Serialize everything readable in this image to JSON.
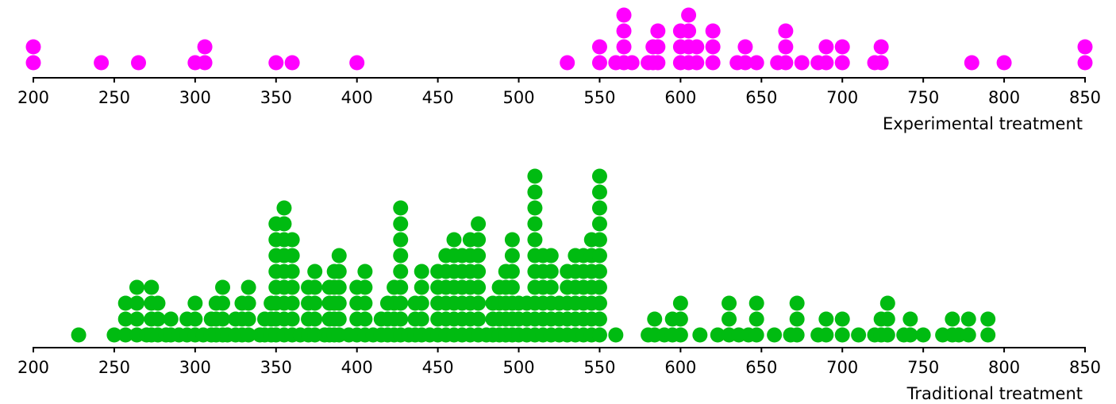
{
  "chart_data": [
    {
      "type": "dotplot",
      "title": "",
      "xlabel": "Experimental treatment",
      "xlim": [
        200,
        850
      ],
      "xticks": [
        200,
        250,
        300,
        350,
        400,
        450,
        500,
        550,
        600,
        650,
        700,
        750,
        800,
        850
      ],
      "color": "#ff00ff",
      "dots": [
        [
          200,
          2
        ],
        [
          242,
          1
        ],
        [
          265,
          1
        ],
        [
          300,
          1
        ],
        [
          306,
          2
        ],
        [
          350,
          1
        ],
        [
          360,
          1
        ],
        [
          400,
          1
        ],
        [
          530,
          1
        ],
        [
          550,
          2
        ],
        [
          560,
          1
        ],
        [
          565,
          4
        ],
        [
          570,
          1
        ],
        [
          580,
          1
        ],
        [
          583,
          2
        ],
        [
          586,
          3
        ],
        [
          600,
          3
        ],
        [
          605,
          4
        ],
        [
          610,
          2
        ],
        [
          620,
          3
        ],
        [
          635,
          1
        ],
        [
          640,
          2
        ],
        [
          647,
          1
        ],
        [
          660,
          1
        ],
        [
          665,
          3
        ],
        [
          675,
          1
        ],
        [
          685,
          1
        ],
        [
          690,
          2
        ],
        [
          700,
          2
        ],
        [
          720,
          1
        ],
        [
          724,
          2
        ],
        [
          780,
          1
        ],
        [
          800,
          1
        ],
        [
          850,
          2
        ]
      ]
    },
    {
      "type": "dotplot",
      "title": "",
      "xlabel": "Traditional treatment",
      "xlim": [
        200,
        850
      ],
      "xticks": [
        200,
        250,
        300,
        350,
        400,
        450,
        500,
        550,
        600,
        650,
        700,
        750,
        800,
        850
      ],
      "color": "#00bb11",
      "dots": [
        [
          228,
          1
        ],
        [
          250,
          1
        ],
        [
          257,
          3
        ],
        [
          264,
          4
        ],
        [
          270,
          1
        ],
        [
          273,
          4
        ],
        [
          277,
          3
        ],
        [
          282,
          1
        ],
        [
          285,
          2
        ],
        [
          290,
          1
        ],
        [
          295,
          2
        ],
        [
          300,
          3
        ],
        [
          305,
          1
        ],
        [
          310,
          2
        ],
        [
          313,
          3
        ],
        [
          317,
          4
        ],
        [
          320,
          1
        ],
        [
          325,
          2
        ],
        [
          329,
          3
        ],
        [
          333,
          4
        ],
        [
          340,
          1
        ],
        [
          343,
          2
        ],
        [
          347,
          3
        ],
        [
          350,
          8
        ],
        [
          355,
          9
        ],
        [
          360,
          7
        ],
        [
          365,
          1
        ],
        [
          370,
          4
        ],
        [
          374,
          5
        ],
        [
          380,
          1
        ],
        [
          383,
          4
        ],
        [
          386,
          5
        ],
        [
          389,
          6
        ],
        [
          395,
          1
        ],
        [
          400,
          4
        ],
        [
          405,
          5
        ],
        [
          410,
          1
        ],
        [
          415,
          2
        ],
        [
          419,
          3
        ],
        [
          423,
          4
        ],
        [
          427,
          9
        ],
        [
          432,
          1
        ],
        [
          436,
          3
        ],
        [
          440,
          5
        ],
        [
          445,
          1
        ],
        [
          450,
          5
        ],
        [
          455,
          6
        ],
        [
          460,
          7
        ],
        [
          465,
          6
        ],
        [
          470,
          7
        ],
        [
          475,
          8
        ],
        [
          480,
          1
        ],
        [
          484,
          3
        ],
        [
          488,
          4
        ],
        [
          492,
          5
        ],
        [
          496,
          7
        ],
        [
          500,
          3
        ],
        [
          505,
          3
        ],
        [
          510,
          11
        ],
        [
          515,
          6
        ],
        [
          520,
          6
        ],
        [
          525,
          3
        ],
        [
          530,
          5
        ],
        [
          535,
          6
        ],
        [
          540,
          6
        ],
        [
          545,
          7
        ],
        [
          550,
          11
        ],
        [
          560,
          1
        ],
        [
          580,
          1
        ],
        [
          584,
          2
        ],
        [
          590,
          1
        ],
        [
          595,
          2
        ],
        [
          600,
          3
        ],
        [
          612,
          1
        ],
        [
          623,
          1
        ],
        [
          630,
          3
        ],
        [
          636,
          1
        ],
        [
          642,
          1
        ],
        [
          647,
          3
        ],
        [
          658,
          1
        ],
        [
          668,
          1
        ],
        [
          672,
          3
        ],
        [
          685,
          1
        ],
        [
          690,
          2
        ],
        [
          700,
          2
        ],
        [
          710,
          1
        ],
        [
          720,
          1
        ],
        [
          724,
          2
        ],
        [
          728,
          3
        ],
        [
          738,
          1
        ],
        [
          742,
          2
        ],
        [
          750,
          1
        ],
        [
          762,
          1
        ],
        [
          768,
          2
        ],
        [
          772,
          1
        ],
        [
          778,
          2
        ],
        [
          790,
          2
        ]
      ]
    }
  ]
}
